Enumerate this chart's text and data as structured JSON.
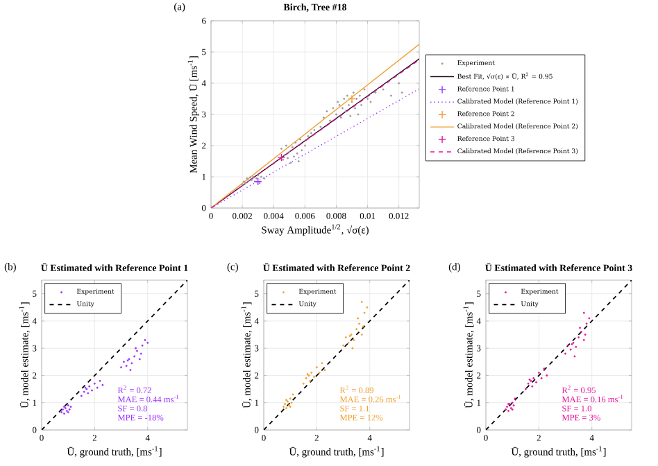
{
  "chart_data": [
    {
      "type": "scatter",
      "title": "Birch, Tree #18",
      "xlabel": "Sway Amplitude$^{1/2}$, √σ(ε)",
      "ylabel": "Mean Wind Speed, Ū [ms$^{-1}$]",
      "xlim": [
        0,
        0.0133
      ],
      "ylim": [
        0,
        6
      ],
      "xticks": [
        0,
        0.002,
        0.004,
        0.006,
        0.008,
        0.01,
        0.012
      ],
      "yticks": [
        0,
        1,
        2,
        3,
        4,
        5,
        6
      ],
      "grid": true,
      "legend": "right",
      "annotations": [
        "(a)"
      ],
      "series": [
        {
          "name": "Experiment",
          "color": "#9a9a9a",
          "marker": "circle",
          "x": [
            0.002,
            0.0021,
            0.0022,
            0.0023,
            0.0024,
            0.0025,
            0.0026,
            0.0027,
            0.0028,
            0.0029,
            0.003,
            0.0031,
            0.0032,
            0.0034,
            0.0045,
            0.0046,
            0.0047,
            0.0048,
            0.0049,
            0.005,
            0.0051,
            0.0052,
            0.0053,
            0.0054,
            0.0055,
            0.0056,
            0.0057,
            0.0058,
            0.006,
            0.0062,
            0.0064,
            0.0066,
            0.007,
            0.0072,
            0.0074,
            0.0076,
            0.0078,
            0.008,
            0.0081,
            0.0082,
            0.0083,
            0.0084,
            0.0085,
            0.0086,
            0.0087,
            0.0088,
            0.0089,
            0.009,
            0.0091,
            0.0092,
            0.0093,
            0.0094,
            0.0095,
            0.0096,
            0.0098,
            0.01,
            0.0102,
            0.0105,
            0.011,
            0.0115,
            0.012,
            0.0122
          ],
          "values": [
            0.75,
            0.85,
            0.8,
            0.95,
            0.88,
            0.98,
            0.9,
            1.0,
            0.85,
            0.95,
            1.05,
            0.8,
            1.0,
            0.95,
            1.9,
            1.55,
            1.7,
            2.0,
            1.6,
            1.8,
            1.45,
            1.95,
            1.65,
            2.1,
            1.75,
            1.5,
            2.2,
            1.85,
            2.0,
            2.3,
            2.4,
            2.5,
            2.6,
            2.9,
            3.1,
            2.8,
            3.2,
            3.0,
            3.4,
            3.3,
            2.9,
            3.2,
            3.5,
            3.1,
            3.6,
            3.3,
            2.95,
            3.4,
            3.7,
            3.2,
            3.5,
            3.0,
            3.6,
            3.3,
            3.8,
            3.5,
            3.4,
            3.7,
            3.8,
            3.6,
            4.0,
            3.7
          ]
        },
        {
          "name": "Best Fit, √σ(ε) ∝ Ū, R$^{2}$ = 0.95",
          "type": "line",
          "color": "#2a0a1e",
          "line_style": "solid",
          "x": [
            0,
            0.0133
          ],
          "values": [
            0,
            4.78
          ]
        },
        {
          "name": "Reference Point 1",
          "color": "#9933ff",
          "marker": "cross",
          "x": [
            0.003
          ],
          "values": [
            0.85
          ]
        },
        {
          "name": "Calibrated Model (Reference Point 1)",
          "type": "line",
          "color": "#9933ff",
          "line_style": "dotted",
          "x": [
            0,
            0.0133
          ],
          "values": [
            0,
            3.82
          ]
        },
        {
          "name": "Reference Point 2",
          "color": "#f0a030",
          "marker": "cross",
          "x": [
            0.009
          ],
          "values": [
            3.5
          ]
        },
        {
          "name": "Calibrated Model (Reference Point 2)",
          "type": "line",
          "color": "#f0a030",
          "line_style": "solid",
          "x": [
            0,
            0.0133
          ],
          "values": [
            0,
            5.25
          ]
        },
        {
          "name": "Reference Point 3",
          "color": "#e6149b",
          "marker": "cross",
          "x": [
            0.0045
          ],
          "values": [
            1.62
          ]
        },
        {
          "name": "Calibrated Model (Reference Point 3)",
          "type": "line",
          "color": "#e6149b",
          "line_style": "dashed",
          "x": [
            0,
            0.0133
          ],
          "values": [
            0,
            4.75
          ]
        }
      ]
    },
    {
      "type": "scatter",
      "title": "Ū Estimated with Reference Point 1",
      "xlabel": "Ū, ground truth, [ms$^{-1}$]",
      "ylabel": "Ū, model estimate, [ms$^{-1}$]",
      "xlim": [
        0,
        5.5
      ],
      "ylim": [
        0,
        5.5
      ],
      "xticks": [
        0,
        2,
        4
      ],
      "yticks": [
        0,
        1,
        2,
        3,
        4,
        5
      ],
      "grid": true,
      "legend": "top left",
      "annotations": [
        "(b)",
        "R$^{2}$ = 0.72",
        "MAE = 0.44 ms$^{-1}$",
        "SF = 0.8",
        "MPE = -18%"
      ],
      "series": [
        {
          "name": "Experiment",
          "color": "#9933ff",
          "marker": "circle",
          "x": [
            0.75,
            0.8,
            0.85,
            0.9,
            0.95,
            1.0,
            1.05,
            1.1,
            0.85,
            1.0,
            1.5,
            1.6,
            1.7,
            1.75,
            1.8,
            1.9,
            2.0,
            2.1,
            2.2,
            1.65,
            2.3,
            3.0,
            3.1,
            3.2,
            3.3,
            3.4,
            3.5,
            3.6,
            3.7,
            3.8,
            3.9,
            4.0,
            3.35,
            3.55,
            3.75,
            3.25
          ],
          "values": [
            0.65,
            0.75,
            0.6,
            0.8,
            0.7,
            0.9,
            0.75,
            0.85,
            0.85,
            0.65,
            1.25,
            1.4,
            1.5,
            1.35,
            1.6,
            1.45,
            1.7,
            1.55,
            1.8,
            1.55,
            1.65,
            2.3,
            2.5,
            2.35,
            2.6,
            2.45,
            2.7,
            2.9,
            2.6,
            3.1,
            3.3,
            3.2,
            2.2,
            3.0,
            2.8,
            2.55
          ]
        },
        {
          "name": "Unity",
          "type": "line",
          "color": "#000000",
          "line_style": "dashed",
          "x": [
            0,
            5.5
          ],
          "values": [
            0,
            5.5
          ]
        }
      ]
    },
    {
      "type": "scatter",
      "title": "Ū Estimated with Reference Point 2",
      "xlabel": "Ū, ground truth, [ms$^{-1}$]",
      "ylabel": "Ū, model estimate, [ms$^{-1}$]",
      "xlim": [
        0,
        5.5
      ],
      "ylim": [
        0,
        5.5
      ],
      "xticks": [
        0,
        2,
        4
      ],
      "yticks": [
        0,
        1,
        2,
        3,
        4,
        5
      ],
      "grid": true,
      "legend": "top left",
      "annotations": [
        "(c)",
        "R$^{2}$ = 0.89",
        "MAE = 0.26 ms$^{-1}$",
        "SF = 1.1",
        "MPE = 12%"
      ],
      "series": [
        {
          "name": "Experiment",
          "color": "#f0a030",
          "marker": "circle",
          "x": [
            0.75,
            0.8,
            0.85,
            0.9,
            0.95,
            1.0,
            1.05,
            1.1,
            0.85,
            1.0,
            1.5,
            1.6,
            1.7,
            1.75,
            1.8,
            1.9,
            2.0,
            2.1,
            2.2,
            1.65,
            2.3,
            3.0,
            3.1,
            3.2,
            3.3,
            3.4,
            3.5,
            3.6,
            3.7,
            3.8,
            3.7,
            3.55,
            3.35,
            3.75,
            3.25,
            3.9
          ],
          "values": [
            0.85,
            0.95,
            0.8,
            1.05,
            0.9,
            1.15,
            1.0,
            1.3,
            1.1,
            0.85,
            1.7,
            1.9,
            2.0,
            1.8,
            2.1,
            1.95,
            2.3,
            2.1,
            2.45,
            2.05,
            2.2,
            3.1,
            3.4,
            3.2,
            3.5,
            3.3,
            3.7,
            3.9,
            3.5,
            4.3,
            4.7,
            4.1,
            3.0,
            3.8,
            3.45,
            4.5
          ]
        },
        {
          "name": "Unity",
          "type": "line",
          "color": "#000000",
          "line_style": "dashed",
          "x": [
            0,
            5.5
          ],
          "values": [
            0,
            5.5
          ]
        }
      ]
    },
    {
      "type": "scatter",
      "title": "Ū Estimated with Reference Point 3",
      "xlabel": "Ū, ground truth, [ms$^{-1}$]",
      "ylabel": "Ū, model estimate, [ms$^{-1}$]",
      "xlim": [
        0,
        5.5
      ],
      "ylim": [
        0,
        5.5
      ],
      "xticks": [
        0,
        2,
        4
      ],
      "yticks": [
        0,
        1,
        2,
        3,
        4,
        5
      ],
      "grid": true,
      "legend": "top left",
      "annotations": [
        "(d)",
        "R$^{2}$ = 0.95",
        "MAE = 0.16 ms$^{-1}$",
        "SF = 1.0",
        "MPE = 3%"
      ],
      "series": [
        {
          "name": "Experiment",
          "color": "#e6149b",
          "marker": "circle",
          "x": [
            0.75,
            0.8,
            0.85,
            0.9,
            0.95,
            1.0,
            1.05,
            1.1,
            0.85,
            1.0,
            1.5,
            1.6,
            1.7,
            1.75,
            1.8,
            1.9,
            2.0,
            2.1,
            2.2,
            1.65,
            2.3,
            3.0,
            3.1,
            3.2,
            3.3,
            3.4,
            3.5,
            3.6,
            3.7,
            3.8,
            3.7,
            3.55,
            3.35,
            3.75,
            3.25,
            3.9
          ],
          "values": [
            0.75,
            0.85,
            0.7,
            0.95,
            0.8,
            1.0,
            0.9,
            1.15,
            0.95,
            0.75,
            1.5,
            1.7,
            1.8,
            1.6,
            1.9,
            1.75,
            2.1,
            1.9,
            2.25,
            1.85,
            2.0,
            2.8,
            3.1,
            2.95,
            3.2,
            3.05,
            3.4,
            3.6,
            3.3,
            3.9,
            4.3,
            3.75,
            2.7,
            3.5,
            3.15,
            4.1
          ]
        },
        {
          "name": "Unity",
          "type": "line",
          "color": "#000000",
          "line_style": "dashed",
          "x": [
            0,
            5.5
          ],
          "values": [
            0,
            5.5
          ]
        }
      ]
    }
  ]
}
